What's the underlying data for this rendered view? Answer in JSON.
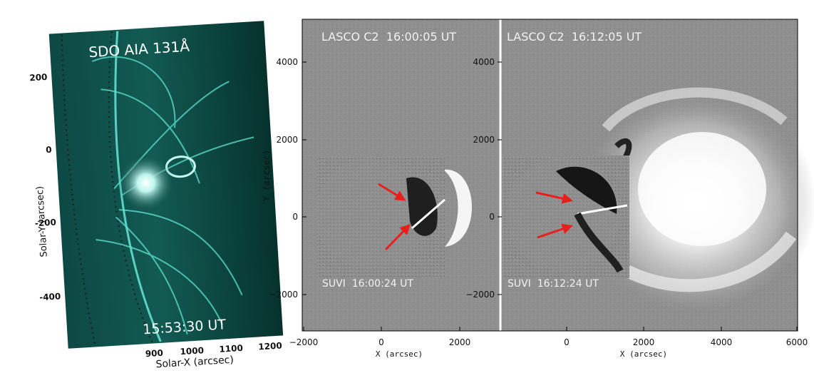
{
  "aia_panel": {
    "instrument_label": "SDO AIA 131Å",
    "time_label": "15:53:30 UT",
    "y_axis_label": "Solar-Y (arcsec)",
    "x_axis_label": "Solar-X (arcsec)",
    "y_ticks": [
      "200",
      "0",
      "-200",
      "-400"
    ],
    "x_ticks": [
      "900",
      "1000",
      "1100",
      "1200"
    ],
    "colormap": "#2fd6c4"
  },
  "lasco_panel_left": {
    "lasco_label": "LASCO C2  16:00:05 UT",
    "suvi_label": "SUVI  16:00:24 UT",
    "x_ticks": [
      "−2000",
      "0",
      "2000"
    ],
    "x_axis_label": "X (arcsec)"
  },
  "lasco_panel_right": {
    "lasco_label": "LASCO C2  16:12:05 UT",
    "suvi_label": "SUVI  16:12:24 UT",
    "x_ticks": [
      "0",
      "2000",
      "4000",
      "6000"
    ],
    "x_axis_label": "X (arcsec)",
    "y_axis_label": "Y (arcsec)",
    "y_ticks_right_side": [
      "4000",
      "2000",
      "0",
      "−2000"
    ]
  },
  "lasco_y_axis": {
    "y_ticks": [
      "4000",
      "2000",
      "0",
      "−2000"
    ]
  },
  "colors": {
    "arrow": "#e8201c",
    "background_gray": "#8a8a8a"
  }
}
